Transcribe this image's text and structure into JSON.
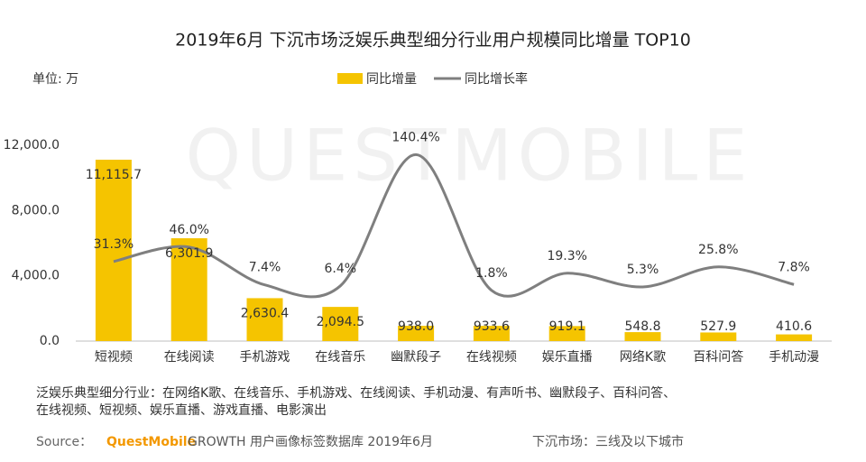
{
  "chart_data": {
    "type": "bar",
    "title": "2019年6月 下沉市场泛娱乐典型细分行业用户规模同比增量 TOP10",
    "unit_label": "单位: 万",
    "watermark": "QUESTMOBILE",
    "categories": [
      "短视频",
      "在线阅读",
      "手机游戏",
      "在线音乐",
      "幽默段子",
      "在线视频",
      "娱乐直播",
      "网络K歌",
      "百科问答",
      "手机动漫"
    ],
    "series": [
      {
        "name": "同比增量",
        "type": "bar",
        "color": "#f5c400",
        "values": [
          11115.7,
          6301.9,
          2630.4,
          2094.5,
          938.0,
          933.6,
          919.1,
          548.8,
          527.9,
          410.6
        ],
        "value_labels": [
          "11,115.7",
          "6,301.9",
          "2,630.4",
          "2,094.5",
          "938.0",
          "933.6",
          "919.1",
          "548.8",
          "527.9",
          "410.6"
        ]
      },
      {
        "name": "同比增长率",
        "type": "line",
        "axis": "y2",
        "color": "#7f7f7f",
        "values": [
          31.3,
          46.0,
          7.4,
          6.4,
          140.4,
          1.8,
          19.3,
          5.3,
          25.8,
          7.8
        ],
        "value_labels": [
          "31.3%",
          "46.0%",
          "7.4%",
          "6.4%",
          "140.4%",
          "1.8%",
          "19.3%",
          "5.3%",
          "25.8%",
          "7.8%"
        ]
      }
    ],
    "ylim": [
      0,
      12000
    ],
    "yticks": [
      {
        "value": 0,
        "label": "0.0"
      },
      {
        "value": 4000,
        "label": "4,000.0"
      },
      {
        "value": 8000,
        "label": "8,000.0"
      },
      {
        "value": 12000,
        "label": "12,000.0"
      }
    ],
    "y2lim": [
      -50,
      150
    ],
    "notes": [
      "泛娱乐典型细分行业：在网络K歌、在线音乐、手机游戏、在线阅读、手机动漫、有声听书、幽默段子、百科问答、",
      "在线视频、短视频、娱乐直播、游戏直播、电影演出"
    ],
    "source": {
      "label": "Source：",
      "brand": "QuestMobile",
      "text": "GROWTH 用户画像标签数据库  2019年6月",
      "right": "下沉市场：三线及以下城市"
    }
  }
}
